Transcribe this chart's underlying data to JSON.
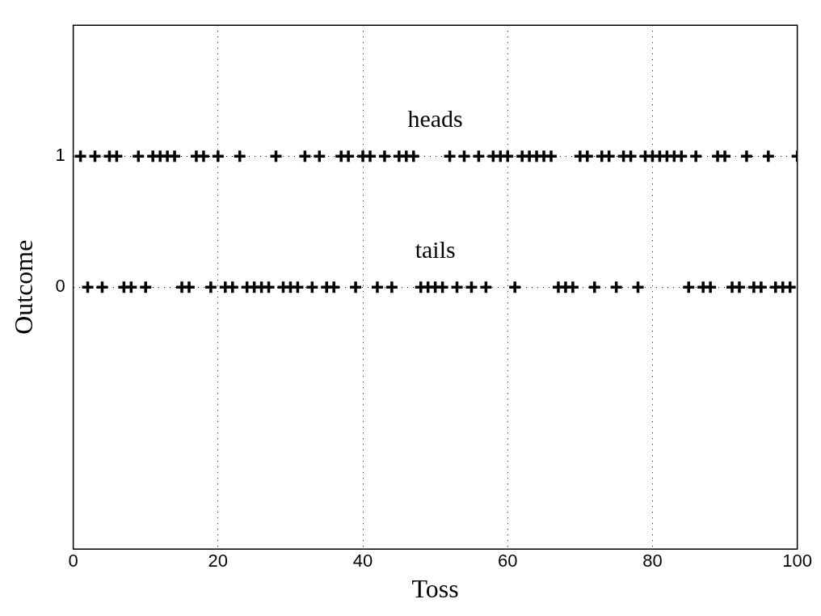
{
  "chart_data": {
    "type": "scatter",
    "xlabel": "Toss",
    "ylabel": "Outcome",
    "x": [
      1,
      2,
      3,
      4,
      5,
      6,
      7,
      8,
      9,
      10,
      11,
      12,
      13,
      14,
      15,
      16,
      17,
      18,
      19,
      20,
      21,
      22,
      23,
      24,
      25,
      26,
      27,
      28,
      29,
      30,
      31,
      32,
      33,
      34,
      35,
      36,
      37,
      38,
      39,
      40,
      41,
      42,
      43,
      44,
      45,
      46,
      47,
      48,
      49,
      50,
      51,
      52,
      53,
      54,
      55,
      56,
      57,
      58,
      59,
      60,
      61,
      62,
      63,
      64,
      65,
      66,
      67,
      68,
      69,
      70,
      71,
      72,
      73,
      74,
      75,
      76,
      77,
      78,
      79,
      80,
      81,
      82,
      83,
      84,
      85,
      86,
      87,
      88,
      89,
      90,
      91,
      92,
      93,
      94,
      95,
      96,
      97,
      98,
      99,
      100
    ],
    "values": [
      1,
      0,
      1,
      0,
      1,
      1,
      0,
      0,
      1,
      0,
      1,
      1,
      1,
      1,
      0,
      0,
      1,
      1,
      0,
      1,
      0,
      0,
      1,
      0,
      0,
      0,
      0,
      1,
      0,
      0,
      0,
      1,
      0,
      1,
      0,
      0,
      1,
      1,
      0,
      1,
      1,
      0,
      1,
      0,
      1,
      1,
      1,
      0,
      0,
      0,
      0,
      1,
      0,
      1,
      0,
      1,
      0,
      1,
      1,
      1,
      0,
      1,
      1,
      1,
      1,
      1,
      0,
      0,
      0,
      1,
      1,
      0,
      1,
      1,
      0,
      1,
      1,
      0,
      1,
      1,
      1,
      1,
      1,
      1,
      0,
      1,
      0,
      0,
      1,
      1,
      0,
      0,
      1,
      0,
      0,
      1,
      0,
      0,
      0,
      1
    ],
    "color": "#000000",
    "marker": "cross",
    "grid": true,
    "legend": false,
    "xlim": [
      0,
      100
    ],
    "xticks": [
      0,
      20,
      40,
      60,
      80,
      100
    ],
    "ylim": [
      -2,
      2
    ],
    "yticks": [
      0,
      1
    ],
    "annotations": [
      "heads",
      "tails"
    ]
  }
}
